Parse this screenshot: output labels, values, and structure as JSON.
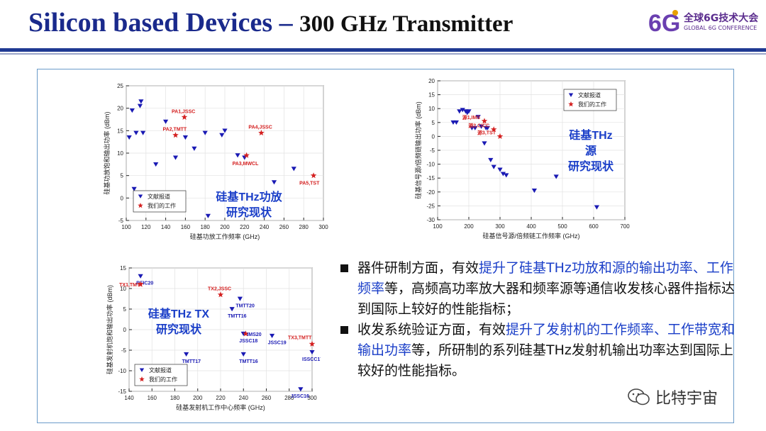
{
  "slide": {
    "title_main": "Silicon based Devices – ",
    "title_sub": "300 GHz Transmitter"
  },
  "logo": {
    "mark": "6G",
    "text": "全球6G技术大会",
    "subtext": "GLOBAL 6G CONFERENCE"
  },
  "colors": {
    "title": "#1a2a8c",
    "rule": "#1f3a93",
    "literature": "#1a1ab4",
    "ours": "#d42020",
    "highlight": "#1a3ec8",
    "frame": "#6a9bc9"
  },
  "chart_data": [
    {
      "type": "scatter",
      "xlabel": "硅基功放工作频率 (GHz)",
      "ylabel": "硅基功放饱和输出功率 (dBm)",
      "xlim": [
        100,
        300
      ],
      "ylim": [
        -5,
        25
      ],
      "xticks": [
        100,
        120,
        140,
        160,
        180,
        200,
        220,
        240,
        260,
        280,
        300
      ],
      "yticks": [
        -5,
        0,
        5,
        10,
        15,
        20,
        25
      ],
      "legend": [
        "文献报道",
        "我们的工作"
      ],
      "overlay": "硅基THz功放研究现状",
      "overlay_lines": [
        "硅基THz功放",
        "研究现状"
      ],
      "series": [
        {
          "name": "文献报道",
          "marker": "triangle-down",
          "x": [
            103,
            106,
            108,
            110,
            114,
            115,
            117,
            130,
            140,
            150,
            160,
            169,
            180,
            183,
            197,
            200,
            213,
            220,
            250,
            270
          ],
          "y": [
            13.5,
            19.5,
            2,
            14.5,
            20.5,
            21.5,
            14.5,
            7.5,
            17,
            9,
            13.5,
            11,
            14.5,
            -4,
            14,
            15,
            9.5,
            9,
            3.5,
            6.5
          ]
        },
        {
          "name": "我们的工作",
          "marker": "star",
          "x": [
            159,
            150,
            237,
            222,
            290
          ],
          "y": [
            18,
            14,
            14.5,
            9.5,
            5
          ],
          "labels": [
            "PA1,JSSC",
            "PA2,TMTT",
            "PA4,JSSC",
            "PA3,MWCL",
            "PA5,TST"
          ]
        }
      ]
    },
    {
      "type": "scatter",
      "xlabel": "硅基信号源/倍频链工作频率 (GHz)",
      "ylabel": "硅基信号源/倍频链输出功率 (dBm)",
      "xlim": [
        100,
        700
      ],
      "ylim": [
        -30,
        20
      ],
      "xticks": [
        100,
        200,
        300,
        400,
        500,
        600,
        700
      ],
      "yticks": [
        -30,
        -25,
        -20,
        -15,
        -10,
        -5,
        0,
        5,
        10,
        15,
        20
      ],
      "legend": [
        "文献报道",
        "我们的工作"
      ],
      "overlay": "硅基THz源研究现状",
      "overlay_lines": [
        "硅基THz",
        "源",
        "研究现状"
      ],
      "series": [
        {
          "name": "文献报道",
          "marker": "triangle-down",
          "x": [
            150,
            160,
            170,
            180,
            190,
            195,
            200,
            210,
            220,
            230,
            240,
            250,
            255,
            260,
            270,
            280,
            300,
            310,
            320,
            410,
            480,
            610
          ],
          "y": [
            5,
            5,
            9,
            9.5,
            9,
            8.5,
            9,
            3,
            3,
            7,
            3.5,
            -2.5,
            3,
            3,
            -8.5,
            -11,
            -12,
            -13.5,
            -14,
            -19.5,
            -14.5,
            -25.5
          ]
        },
        {
          "name": "我们的工作",
          "marker": "star",
          "x": [
            250,
            280,
            300
          ],
          "y": [
            5.5,
            2.5,
            0
          ],
          "labels": [
            "源1,IMS",
            "源2,CICC",
            "源3,TST"
          ]
        }
      ]
    },
    {
      "type": "scatter",
      "xlabel": "硅基发射机工作中心频率 (GHz)",
      "ylabel": "硅基发射机饱和输出功率 (dBm)",
      "xlim": [
        140,
        300
      ],
      "ylim": [
        -15,
        15
      ],
      "xticks": [
        140,
        160,
        180,
        200,
        220,
        240,
        260,
        280,
        300
      ],
      "yticks": [
        -15,
        -10,
        -5,
        0,
        5,
        10,
        15
      ],
      "legend": [
        "文献报道",
        "我们的工作"
      ],
      "overlay": "硅基THz TX研究现状",
      "overlay_lines": [
        "硅基THz TX",
        "研究现状"
      ],
      "series": [
        {
          "name": "文献报道",
          "marker": "triangle-down",
          "x": [
            150,
            190,
            230,
            237,
            240,
            240,
            265,
            300,
            290
          ],
          "y": [
            13,
            -6,
            5,
            7.5,
            -1,
            -6,
            -1.5,
            -5.5,
            -14.5
          ],
          "labels": [
            "RFIC20",
            "TMTT17",
            "TMTT16",
            "TMTT20",
            "JSSC18",
            "TMTT16",
            "JSSC19",
            "ISSCC17",
            "JSSC16"
          ]
        },
        {
          "name": "我们的工作",
          "marker": "star",
          "x": [
            150,
            220,
            300,
            242
          ],
          "y": [
            11,
            8.5,
            -3.5,
            -1
          ],
          "labels": [
            "TX1,TMTT",
            "TX2,JSSC",
            "TX3,TMTT",
            "IMS20"
          ]
        }
      ]
    }
  ],
  "bullets": [
    {
      "pre": "器件研制方面，有效",
      "hl": "提升了硅基THz功放和源的输出功率、工作频率",
      "post": "等，高频高功率放大器和频率源等通信收发核心器件指标达到国际上较好的性能指标；"
    },
    {
      "pre": "收发系统验证方面，有效",
      "hl": "提升了发射机的工作频率、工作带宽和输出功率",
      "post": "等，所研制的系列硅基THz发射机输出功率达到国际上较好的性能指标。"
    }
  ],
  "watermark": {
    "text": "比特宇宙",
    "icon": "wechat-icon"
  }
}
